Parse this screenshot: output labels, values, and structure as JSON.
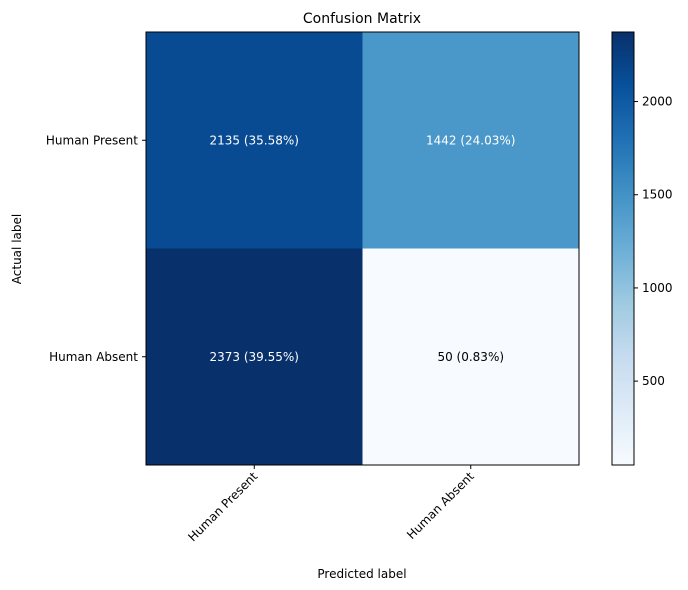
{
  "chart_data": {
    "type": "heatmap",
    "title": "Confusion Matrix",
    "xlabel": "Predicted label",
    "ylabel": "Actual label",
    "x_categories": [
      "Human Present",
      "Human Absent"
    ],
    "y_categories": [
      "Human Present",
      "Human Absent"
    ],
    "values": [
      [
        2135,
        1442
      ],
      [
        2373,
        50
      ]
    ],
    "cell_labels": [
      [
        "2135 (35.58%)",
        "1442 (24.03%)"
      ],
      [
        "2373 (39.55%)",
        "50 (0.83%)"
      ]
    ],
    "colormap": "Blues",
    "colorbar": {
      "range": [
        50,
        2373
      ],
      "ticks": [
        500,
        1000,
        1500,
        2000
      ],
      "tick_labels": [
        "500",
        "1000",
        "1500",
        "2000"
      ]
    }
  }
}
